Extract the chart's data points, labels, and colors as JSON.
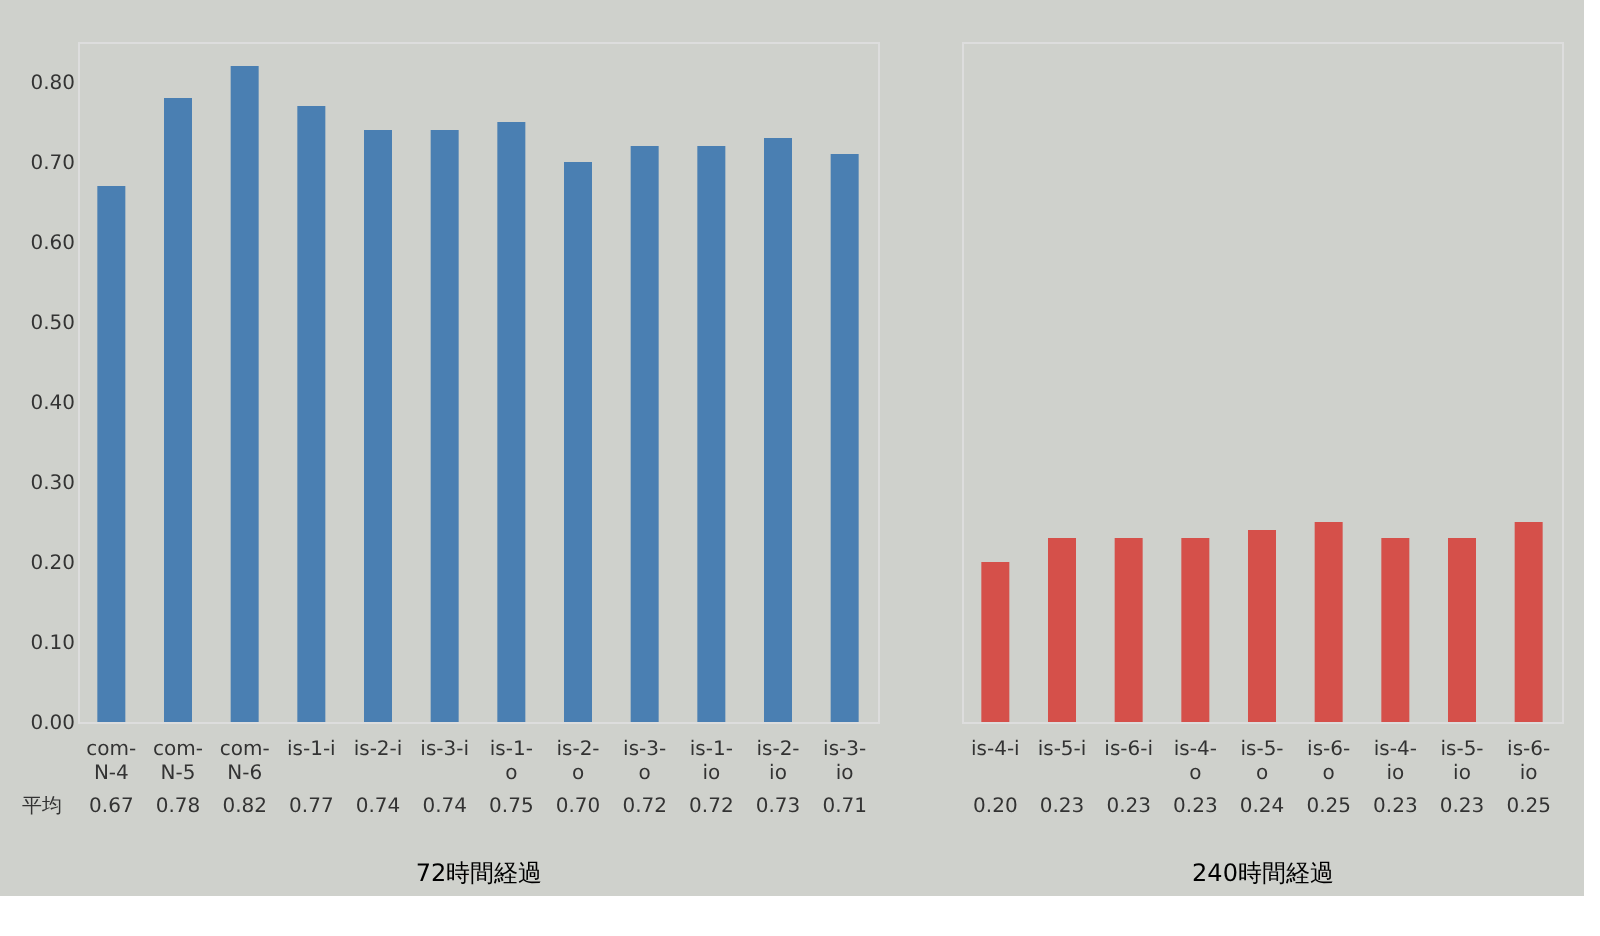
{
  "chart_data": [
    {
      "type": "bar",
      "xlabel": "72時間経過",
      "categories": [
        "com-\nN-4",
        "com-\nN-5",
        "com-\nN-6",
        "is-1-i",
        "is-2-i",
        "is-3-i",
        "is-1-\no",
        "is-2-\no",
        "is-3-\no",
        "is-1-\nio",
        "is-2-\nio",
        "is-3-\nio"
      ],
      "values": [
        0.67,
        0.78,
        0.82,
        0.77,
        0.74,
        0.74,
        0.75,
        0.7,
        0.72,
        0.72,
        0.73,
        0.71
      ],
      "color": "#4a7fb2",
      "value_labels": [
        "0.67",
        "0.78",
        "0.82",
        "0.77",
        "0.74",
        "0.74",
        "0.75",
        "0.70",
        "0.72",
        "0.72",
        "0.73",
        "0.71"
      ],
      "annotations": [
        "平均"
      ],
      "ylim": [
        0,
        0.85
      ],
      "yticks": [
        {
          "value": 0,
          "label": "0.00"
        },
        {
          "value": 0.1,
          "label": "0.10"
        },
        {
          "value": 0.2,
          "label": "0.20"
        },
        {
          "value": 0.3,
          "label": "0.30"
        },
        {
          "value": 0.4,
          "label": "0.40"
        },
        {
          "value": 0.5,
          "label": "0.50"
        },
        {
          "value": 0.6,
          "label": "0.60"
        },
        {
          "value": 0.7,
          "label": "0.70"
        },
        {
          "value": 0.8,
          "label": "0.80"
        }
      ],
      "grid": false
    },
    {
      "type": "bar",
      "xlabel": "240時間経過",
      "categories": [
        "is-4-i",
        "is-5-i",
        "is-6-i",
        "is-4-\no",
        "is-5-\no",
        "is-6-\no",
        "is-4-\nio",
        "is-5-\nio",
        "is-6-\nio"
      ],
      "values": [
        0.2,
        0.23,
        0.23,
        0.23,
        0.24,
        0.25,
        0.23,
        0.23,
        0.25
      ],
      "color": "#d5504a",
      "value_labels": [
        "0.20",
        "0.23",
        "0.23",
        "0.23",
        "0.24",
        "0.25",
        "0.23",
        "0.23",
        "0.25"
      ],
      "ylim": [
        0,
        0.85
      ],
      "tick_labels": "x",
      "grid": false
    }
  ]
}
